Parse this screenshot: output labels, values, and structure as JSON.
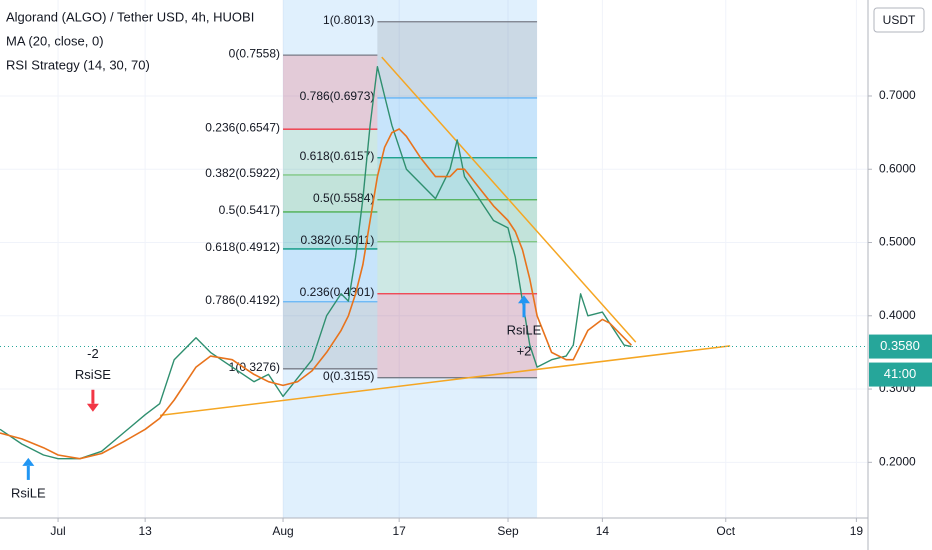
{
  "chart_data": {
    "type": "line",
    "strategy_name": "RSI Strategy (14, 30, 70)",
    "currency": "USDT",
    "grid": true,
    "x": [
      -8,
      -5,
      -2,
      0,
      3,
      6,
      9,
      12,
      14,
      16,
      19,
      21,
      24,
      27,
      29,
      31,
      33,
      35,
      37,
      39,
      40,
      41,
      42,
      43,
      44,
      45,
      46,
      47,
      48,
      50,
      52,
      54,
      55,
      56,
      58,
      60,
      62,
      63,
      64,
      65,
      66,
      68,
      70,
      71,
      72,
      73,
      75,
      76,
      78,
      79
    ],
    "series": [
      {
        "name": "Algorand (ALGO) / Tether USD, 4h, HUOBI",
        "color": "#2f8f6f",
        "values": [
          0.245,
          0.225,
          0.21,
          0.205,
          0.205,
          0.215,
          0.24,
          0.265,
          0.28,
          0.34,
          0.37,
          0.35,
          0.33,
          0.31,
          0.32,
          0.29,
          0.315,
          0.34,
          0.4,
          0.43,
          0.42,
          0.48,
          0.56,
          0.66,
          0.74,
          0.7,
          0.66,
          0.63,
          0.6,
          0.58,
          0.56,
          0.6,
          0.64,
          0.59,
          0.56,
          0.53,
          0.52,
          0.48,
          0.42,
          0.36,
          0.33,
          0.34,
          0.345,
          0.36,
          0.43,
          0.4,
          0.405,
          0.39,
          0.36,
          0.358
        ]
      },
      {
        "name": "MA (20, close, 0)",
        "color": "#e8731c",
        "values": [
          0.24,
          0.232,
          0.22,
          0.21,
          0.205,
          0.212,
          0.228,
          0.245,
          0.26,
          0.285,
          0.33,
          0.345,
          0.34,
          0.32,
          0.31,
          0.305,
          0.31,
          0.325,
          0.35,
          0.38,
          0.4,
          0.43,
          0.47,
          0.53,
          0.59,
          0.63,
          0.65,
          0.655,
          0.645,
          0.615,
          0.59,
          0.59,
          0.6,
          0.6,
          0.575,
          0.55,
          0.53,
          0.515,
          0.49,
          0.45,
          0.4,
          0.35,
          0.34,
          0.34,
          0.36,
          0.38,
          0.395,
          0.39,
          0.37,
          0.36
        ]
      }
    ],
    "xlim": [
      -8,
      111.6
    ],
    "ylim": [
      0.124,
      0.831
    ],
    "xticks": [
      {
        "value": 0,
        "label": "Jul"
      },
      {
        "value": 12,
        "label": "13"
      },
      {
        "value": 31,
        "label": "Aug"
      },
      {
        "value": 47,
        "label": "17"
      },
      {
        "value": 62,
        "label": "Sep"
      },
      {
        "value": 75,
        "label": "14"
      },
      {
        "value": 92,
        "label": "Oct"
      },
      {
        "value": 110,
        "label": "19"
      }
    ],
    "yticks": [
      {
        "value": 0.2,
        "label": "0.2000"
      },
      {
        "value": 0.3,
        "label": "0.3000"
      },
      {
        "value": 0.4,
        "label": "0.4000"
      },
      {
        "value": 0.5,
        "label": "0.5000"
      },
      {
        "value": 0.6,
        "label": "0.6000"
      },
      {
        "value": 0.7,
        "label": "0.7000"
      }
    ],
    "fibs": [
      {
        "x": [
          31,
          44
        ],
        "band_color": "#2196f3",
        "levels": [
          {
            "label": "0(0.7558)",
            "value": 0.7558,
            "color": "#787b86"
          },
          {
            "label": "0.236(0.6547)",
            "value": 0.6547,
            "color": "#f23645"
          },
          {
            "label": "0.382(0.5922)",
            "value": 0.5922,
            "color": "#81c784"
          },
          {
            "label": "0.5(0.5417)",
            "value": 0.5417,
            "color": "#4caf50"
          },
          {
            "label": "0.618(0.4912)",
            "value": 0.4912,
            "color": "#089981"
          },
          {
            "label": "0.786(0.4192)",
            "value": 0.4192,
            "color": "#64b5f6"
          },
          {
            "label": "1(0.3276)",
            "value": 0.3276,
            "color": "#787b86"
          }
        ]
      },
      {
        "x": [
          44,
          66
        ],
        "band_color": "#2196f3",
        "levels": [
          {
            "label": "0(0.3155)",
            "value": 0.3155,
            "color": "#787b86"
          },
          {
            "label": "0.236(0.4301)",
            "value": 0.4301,
            "color": "#f23645"
          },
          {
            "label": "0.382(0.5011)",
            "value": 0.5011,
            "color": "#81c784"
          },
          {
            "label": "0.5(0.5584)",
            "value": 0.5584,
            "color": "#4caf50"
          },
          {
            "label": "0.618(0.6157)",
            "value": 0.6157,
            "color": "#089981"
          },
          {
            "label": "0.786(0.6973)",
            "value": 0.6973,
            "color": "#64b5f6"
          },
          {
            "label": "1(0.8013)",
            "value": 0.8013,
            "color": "#787b86"
          }
        ]
      }
    ],
    "trendlines": [
      {
        "from": [
          44.6,
          0.753
        ],
        "to": [
          79.6,
          0.364
        ],
        "color": "#f5a623"
      },
      {
        "from": [
          14.05,
          0.264
        ],
        "to": [
          92.6,
          0.359
        ],
        "color": "#f5a623"
      }
    ],
    "signals": [
      {
        "x": -4.1,
        "y": 0.206,
        "dir": "up",
        "color": "#2196f3",
        "texts": [
          "RsiLE"
        ]
      },
      {
        "x": 4.8,
        "y": 0.269,
        "dir": "down",
        "color": "#f23645",
        "texts": [
          "-2",
          "RsiSE"
        ]
      },
      {
        "x": 64.2,
        "y": 0.428,
        "dir": "up",
        "color": "#2196f3",
        "texts": [
          "RsiLE",
          "+2"
        ]
      }
    ],
    "price_tag": {
      "value": 0.358,
      "label": "0.3580",
      "color": "#26a69a"
    },
    "countdown": {
      "label": "41:00",
      "color": "#26a69a"
    }
  }
}
